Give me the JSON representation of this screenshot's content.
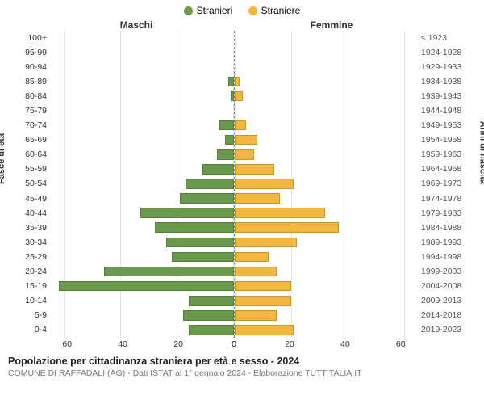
{
  "legend": {
    "male": {
      "label": "Stranieri",
      "color": "#6a994e"
    },
    "female": {
      "label": "Straniere",
      "color": "#f2b73f"
    }
  },
  "header_left": "Maschi",
  "header_right": "Femmine",
  "axis_title_left": "Fasce di età",
  "axis_title_right": "Anni di nascita",
  "age_groups": [
    "100+",
    "95-99",
    "90-94",
    "85-89",
    "80-84",
    "75-79",
    "70-74",
    "65-69",
    "60-64",
    "55-59",
    "50-54",
    "45-49",
    "40-44",
    "35-39",
    "30-34",
    "25-29",
    "20-24",
    "15-19",
    "10-14",
    "5-9",
    "0-4"
  ],
  "birth_years": [
    "≤ 1923",
    "1924-1928",
    "1929-1933",
    "1934-1938",
    "1939-1943",
    "1944-1948",
    "1949-1953",
    "1954-1958",
    "1959-1963",
    "1964-1968",
    "1969-1973",
    "1974-1978",
    "1979-1983",
    "1984-1988",
    "1989-1993",
    "1994-1998",
    "1999-2003",
    "2004-2008",
    "2009-2013",
    "2014-2018",
    "2019-2023"
  ],
  "male_values": [
    0,
    0,
    0,
    2,
    1,
    0,
    5,
    3,
    6,
    11,
    17,
    19,
    33,
    28,
    24,
    22,
    46,
    62,
    16,
    18,
    16
  ],
  "female_values": [
    0,
    0,
    0,
    2,
    3,
    0,
    4,
    8,
    7,
    14,
    21,
    16,
    32,
    37,
    22,
    12,
    15,
    20,
    20,
    15,
    21
  ],
  "x_ticks": [
    0,
    20,
    40,
    60
  ],
  "x_max": 65,
  "colors": {
    "grid": "#e5e5e5",
    "center_line": "#888888",
    "bg": "#ffffff"
  },
  "footer": {
    "title": "Popolazione per cittadinanza straniera per età e sesso - 2024",
    "subtitle": "COMUNE DI RAFFADALI (AG) - Dati ISTAT al 1° gennaio 2024 - Elaborazione TUTTITALIA.IT"
  }
}
